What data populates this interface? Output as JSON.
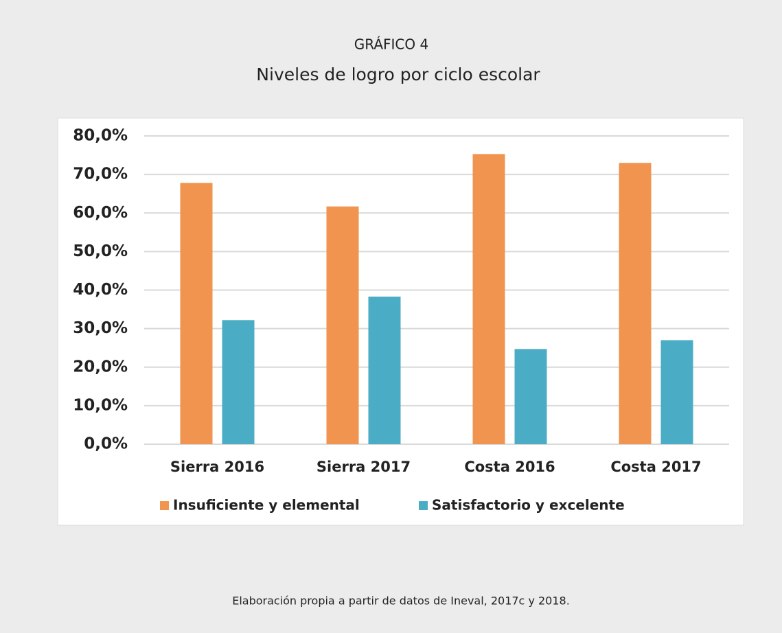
{
  "chart_data": {
    "type": "bar",
    "title": "GRÁFICO 4",
    "subtitle": "Niveles de logro por ciclo escolar",
    "note": "Elaboración propia a partir de datos de Ineval, 2017c y 2018.",
    "categories": [
      "Sierra 2016",
      "Sierra 2017",
      "Costa 2016",
      "Costa 2017"
    ],
    "series": [
      {
        "name": "Insuficiente y elemental",
        "color": "#f0944f",
        "values": [
          67.8,
          61.7,
          75.3,
          73.0
        ]
      },
      {
        "name": "Satisfactorio y excelente",
        "color": "#4bacc6",
        "values": [
          32.2,
          38.3,
          24.7,
          27.0
        ]
      }
    ],
    "ylim": [
      0,
      80
    ],
    "yticks": [
      {
        "value": 0,
        "label": "0,0%"
      },
      {
        "value": 10,
        "label": "10,0%"
      },
      {
        "value": 20,
        "label": "20,0%"
      },
      {
        "value": 30,
        "label": "30,0%"
      },
      {
        "value": 40,
        "label": "40,0%"
      },
      {
        "value": 50,
        "label": "50,0%"
      },
      {
        "value": 60,
        "label": "60,0%"
      },
      {
        "value": 70,
        "label": "70,0%"
      },
      {
        "value": 80,
        "label": "80,0%"
      }
    ],
    "grid": true,
    "legend": "bottom"
  }
}
